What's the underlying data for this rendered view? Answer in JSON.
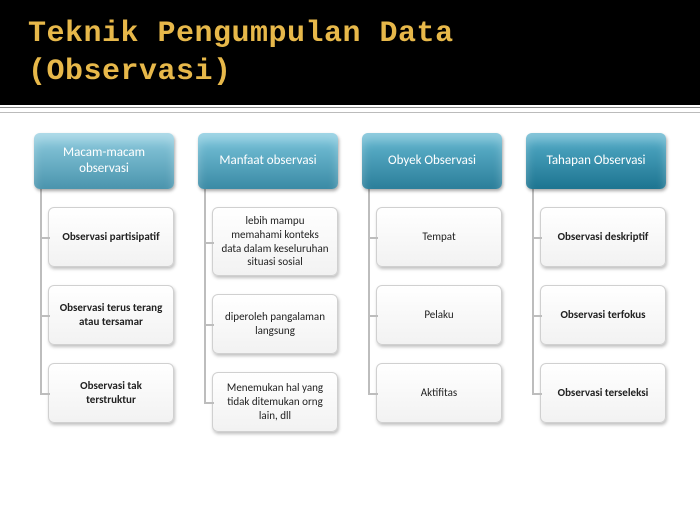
{
  "title_line1": "Teknik Pengumpulan Data",
  "title_line2": "(Observasi)",
  "colors": {
    "header_bg": "#000000",
    "title_color": "#e7b84a",
    "box_bg_top": "#ffffff",
    "box_bg_bottom": "#f2f2f2",
    "box_border": "#d0d0d0",
    "connector": "#bdbdbd",
    "item_text": "#222222"
  },
  "columns": [
    {
      "label": "Macam-macam observasi",
      "header_gradient": [
        "#8fcde0",
        "#4a94ad"
      ],
      "items_bold": true,
      "items": [
        "Observasi partisipatif",
        "Observasi terus terang atau tersamar",
        "Observasi tak terstruktur"
      ]
    },
    {
      "label": "Manfaat observasi",
      "header_gradient": [
        "#7bc6dd",
        "#3a8aa5"
      ],
      "items_bold": false,
      "items": [
        "lebih mampu memahami konteks data dalam keseluruhan situasi sosial",
        "diperoleh pangalaman langsung",
        "Menemukan hal yang tidak ditemukan orng lain, dll"
      ]
    },
    {
      "label": "Obyek Observasi",
      "header_gradient": [
        "#64b8d2",
        "#2b7e9a"
      ],
      "items_bold": false,
      "items": [
        "Tempat",
        "Pelaku",
        "Aktifitas"
      ]
    },
    {
      "label": "Tahapan Observasi",
      "header_gradient": [
        "#56afcb",
        "#1d7490"
      ],
      "items_bold": true,
      "items": [
        "Observasi deskriptif",
        "Observasi terfokus",
        "Observasi terseleksi"
      ]
    }
  ]
}
